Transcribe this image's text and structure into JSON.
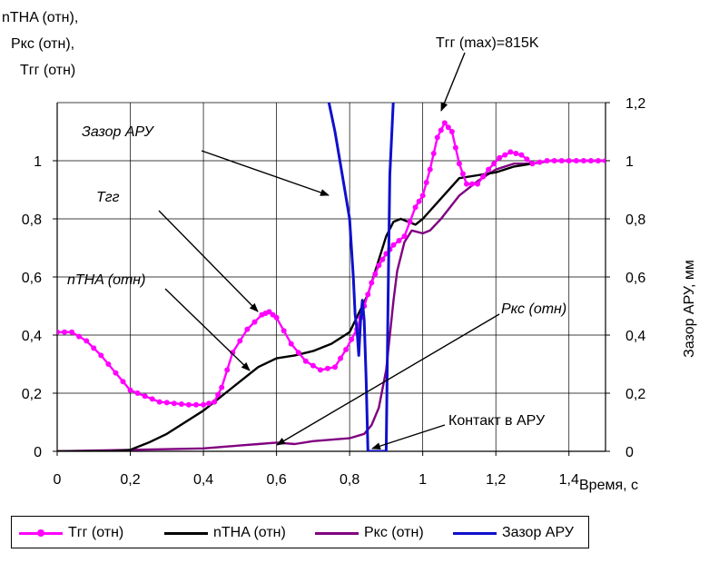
{
  "chart_data": {
    "type": "line",
    "left_axis_title": [
      "nTHA (отн),",
      "Ркс (отн),",
      "Тгг (отн)"
    ],
    "right_axis_title": "Зазор АРУ, мм",
    "xlabel": "Время, с",
    "xlim": [
      0,
      1.5
    ],
    "ylim_left": [
      0,
      1.2
    ],
    "ylim_right": [
      0,
      1.2
    ],
    "x_ticks": [
      "0",
      "0,2",
      "0,4",
      "0,6",
      "0,8",
      "1",
      "1,2",
      "1,4"
    ],
    "y_left_ticks": [
      "0",
      "0,2",
      "0,4",
      "0,6",
      "0,8",
      "1"
    ],
    "y_right_ticks": [
      "0",
      "0,2",
      "0,4",
      "0,6",
      "0,8",
      "1",
      "1,2"
    ],
    "grid": true,
    "legend_position": "bottom",
    "series": [
      {
        "name": "Тгг (отн)",
        "color": "#ff00ff",
        "axis": "left",
        "markers": true,
        "x": [
          0,
          0.04,
          0.08,
          0.12,
          0.16,
          0.2,
          0.24,
          0.28,
          0.32,
          0.36,
          0.4,
          0.43,
          0.45,
          0.48,
          0.52,
          0.56,
          0.58,
          0.6,
          0.64,
          0.68,
          0.72,
          0.76,
          0.79,
          0.82,
          0.84,
          0.86,
          0.88,
          0.9,
          0.92,
          0.95,
          0.98,
          1.0,
          1.02,
          1.04,
          1.06,
          1.08,
          1.1,
          1.12,
          1.15,
          1.18,
          1.21,
          1.24,
          1.27,
          1.3,
          1.34,
          1.38,
          1.42,
          1.46,
          1.5
        ],
        "y": [
          0.41,
          0.41,
          0.38,
          0.33,
          0.27,
          0.21,
          0.19,
          0.17,
          0.165,
          0.16,
          0.16,
          0.17,
          0.22,
          0.34,
          0.42,
          0.47,
          0.48,
          0.46,
          0.37,
          0.31,
          0.28,
          0.29,
          0.35,
          0.42,
          0.5,
          0.58,
          0.64,
          0.68,
          0.71,
          0.74,
          0.84,
          0.88,
          0.97,
          1.08,
          1.13,
          1.1,
          0.99,
          0.92,
          0.92,
          0.97,
          1.01,
          1.03,
          1.02,
          0.99,
          1.0,
          1.0,
          1.0,
          1.0,
          1.0
        ]
      },
      {
        "name": "nTHA (отн)",
        "color": "#000000",
        "axis": "left",
        "markers": false,
        "x": [
          0,
          0.15,
          0.2,
          0.25,
          0.3,
          0.35,
          0.4,
          0.45,
          0.5,
          0.55,
          0.6,
          0.65,
          0.7,
          0.75,
          0.8,
          0.85,
          0.9,
          0.92,
          0.94,
          0.96,
          0.98,
          1.0,
          1.05,
          1.1,
          1.15,
          1.2,
          1.25,
          1.3,
          1.35,
          1.4,
          1.45,
          1.5
        ],
        "y": [
          0,
          0,
          0.005,
          0.03,
          0.06,
          0.1,
          0.14,
          0.19,
          0.24,
          0.29,
          0.32,
          0.33,
          0.345,
          0.37,
          0.41,
          0.54,
          0.74,
          0.79,
          0.8,
          0.79,
          0.78,
          0.8,
          0.87,
          0.94,
          0.95,
          0.96,
          0.98,
          0.99,
          1.0,
          1.0,
          1.0,
          1.0
        ]
      },
      {
        "name": "Ркс (отн)",
        "color": "#800080",
        "axis": "left",
        "markers": false,
        "x": [
          0,
          0.2,
          0.4,
          0.45,
          0.5,
          0.55,
          0.6,
          0.65,
          0.7,
          0.75,
          0.8,
          0.84,
          0.86,
          0.88,
          0.9,
          0.92,
          0.93,
          0.95,
          0.97,
          1.0,
          1.02,
          1.05,
          1.1,
          1.15,
          1.2,
          1.25,
          1.3,
          1.35,
          1.4,
          1.5
        ],
        "y": [
          0,
          0.005,
          0.01,
          0.015,
          0.02,
          0.025,
          0.03,
          0.025,
          0.035,
          0.04,
          0.045,
          0.06,
          0.09,
          0.15,
          0.28,
          0.52,
          0.62,
          0.72,
          0.76,
          0.75,
          0.76,
          0.8,
          0.88,
          0.93,
          0.97,
          0.99,
          0.99,
          1.0,
          1.0,
          1.0
        ]
      },
      {
        "name": "Зазор АРУ",
        "color": "#1010cc",
        "axis": "right",
        "markers": false,
        "x": [
          0.74,
          0.76,
          0.78,
          0.8,
          0.81,
          0.815,
          0.82,
          0.825,
          0.83,
          0.835,
          0.84,
          0.845,
          0.85,
          0.86,
          0.9,
          0.905,
          0.91,
          0.92
        ],
        "y": [
          1.22,
          1.1,
          0.95,
          0.8,
          0.6,
          0.47,
          0.42,
          0.33,
          0.45,
          0.52,
          0.45,
          0.25,
          0.0,
          0.0,
          0.0,
          0.5,
          0.95,
          1.22
        ]
      }
    ],
    "annotations": [
      {
        "text": "Тгг (max)=815K",
        "italic": false
      },
      {
        "text": "Зазор АРУ",
        "italic": true
      },
      {
        "text": "Тгг",
        "italic": true
      },
      {
        "text": "nTHA (отн)",
        "italic": true
      },
      {
        "text": "Ркс (отн)",
        "italic": true
      },
      {
        "text": "Контакт в АРУ",
        "italic": false
      }
    ]
  }
}
